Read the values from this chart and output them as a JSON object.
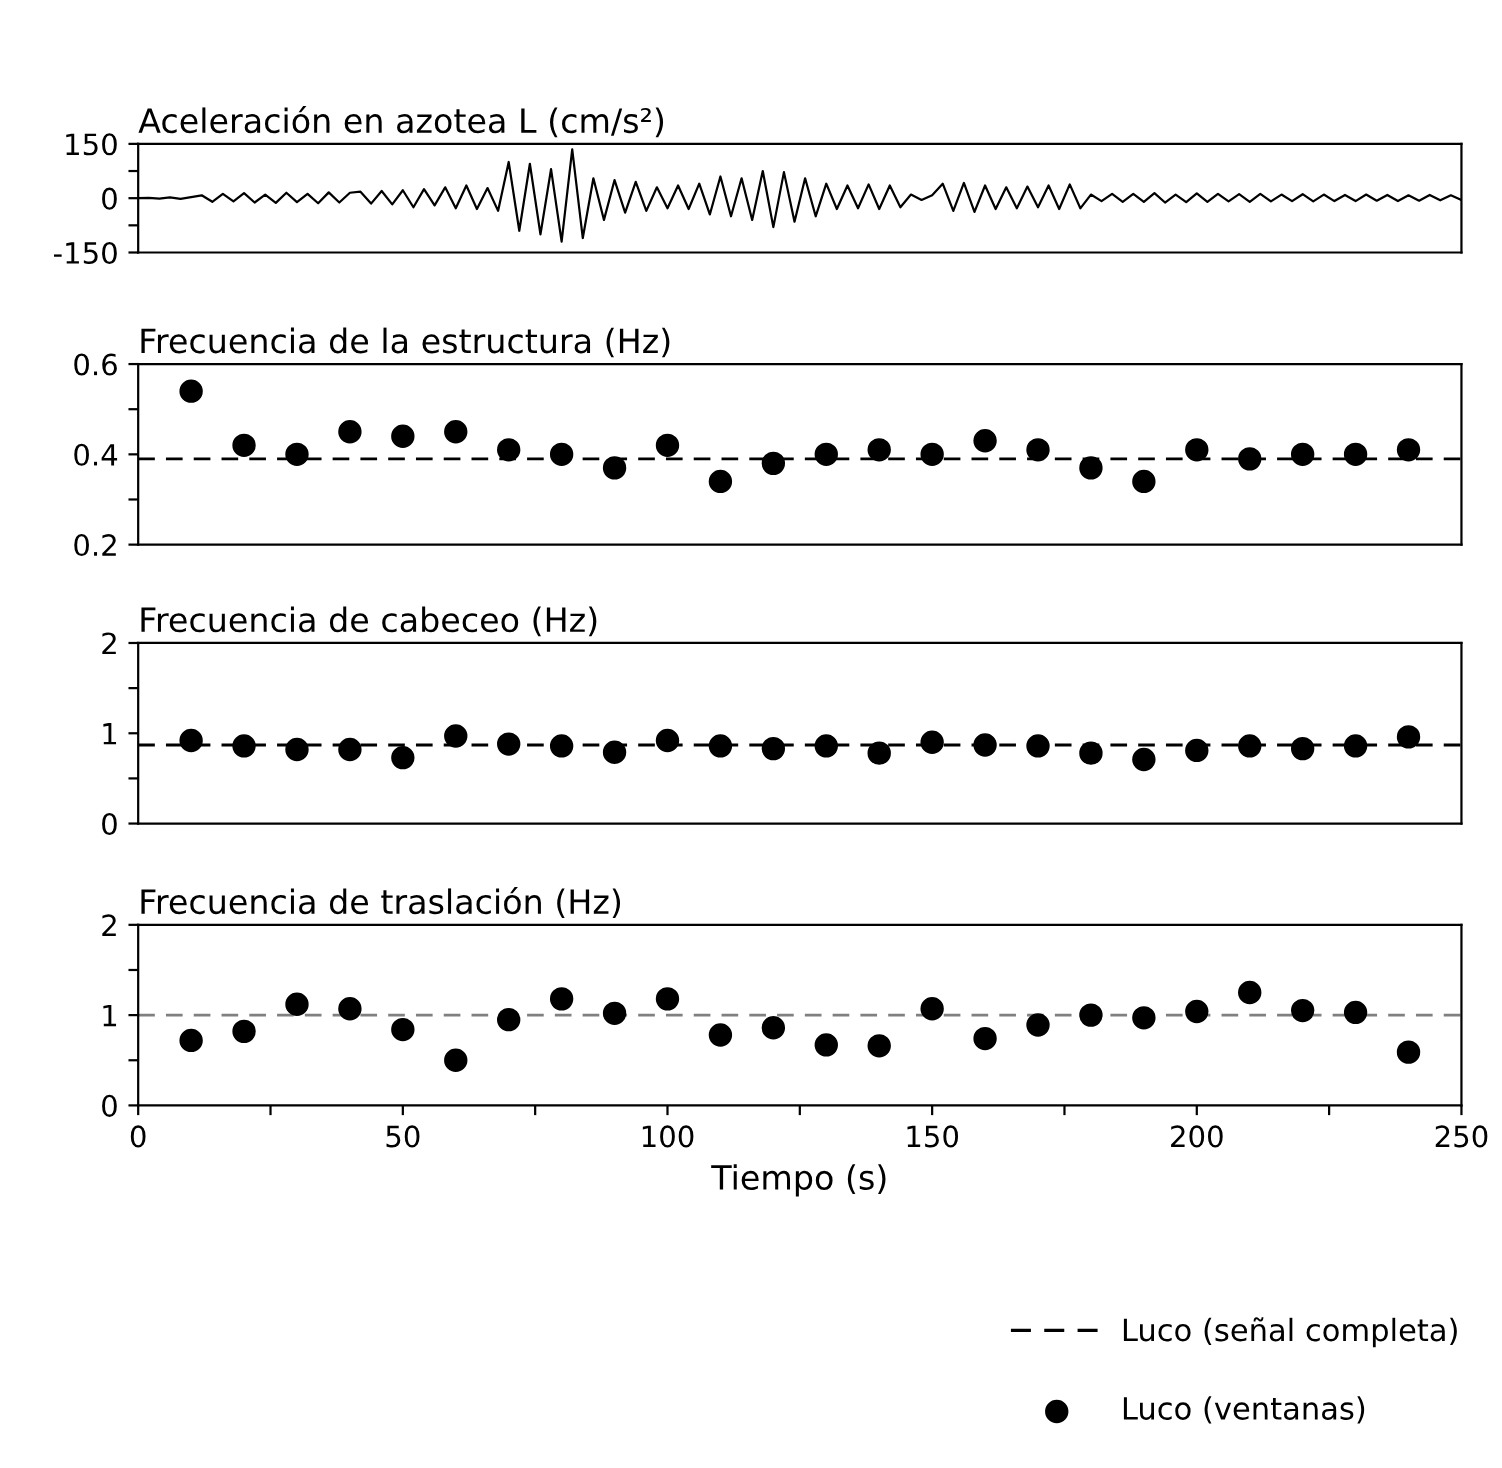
{
  "chart_data": [
    {
      "type": "line",
      "title": "Aceleración en azotea L (cm/s²)",
      "xlim": [
        0,
        250
      ],
      "ylim": [
        -150,
        150
      ],
      "yticks": [
        -150,
        {
          "value": -75,
          "label": null
        },
        0,
        {
          "value": 75,
          "label": null
        },
        150
      ],
      "tick_labels": "y",
      "grid": false,
      "x": [
        0,
        2,
        4,
        6,
        8,
        10,
        12,
        14,
        16,
        18,
        20,
        22,
        24,
        26,
        28,
        30,
        32,
        34,
        36,
        38,
        40,
        42,
        44,
        46,
        48,
        50,
        52,
        54,
        56,
        58,
        60,
        62,
        64,
        66,
        68,
        70,
        72,
        74,
        76,
        78,
        80,
        82,
        84,
        86,
        88,
        90,
        92,
        94,
        96,
        98,
        100,
        102,
        104,
        106,
        108,
        110,
        112,
        114,
        116,
        118,
        120,
        122,
        124,
        126,
        128,
        130,
        132,
        134,
        136,
        138,
        140,
        142,
        144,
        146,
        148,
        150,
        152,
        154,
        156,
        158,
        160,
        162,
        164,
        166,
        168,
        170,
        172,
        174,
        176,
        178,
        180,
        182,
        184,
        186,
        188,
        190,
        192,
        194,
        196,
        198,
        200,
        202,
        204,
        206,
        208,
        210,
        212,
        214,
        216,
        218,
        220,
        222,
        224,
        226,
        228,
        230,
        232,
        234,
        236,
        238,
        240,
        242,
        244,
        246,
        248,
        250
      ],
      "series": [
        {
          "color": "#000000",
          "values": [
            0,
            1,
            -1,
            2,
            -2,
            3,
            8,
            -10,
            12,
            -9,
            14,
            -12,
            10,
            -13,
            15,
            -11,
            12,
            -14,
            16,
            -12,
            15,
            18,
            -15,
            20,
            -17,
            22,
            -25,
            25,
            -20,
            30,
            -28,
            35,
            -30,
            28,
            -35,
            100,
            -90,
            95,
            -100,
            80,
            -120,
            135,
            -110,
            55,
            -60,
            50,
            -40,
            45,
            -35,
            30,
            -28,
            35,
            -30,
            40,
            -45,
            60,
            -50,
            55,
            -60,
            75,
            -80,
            72,
            -65,
            55,
            -50,
            40,
            -30,
            35,
            -28,
            38,
            -30,
            35,
            -25,
            10,
            -5,
            8,
            40,
            -35,
            42,
            -38,
            35,
            -30,
            30,
            -28,
            32,
            -25,
            35,
            -30,
            38,
            -28,
            10,
            -8,
            12,
            -10,
            12,
            -10,
            14,
            -12,
            10,
            -11,
            13,
            -10,
            12,
            -9,
            11,
            -10,
            12,
            -9,
            10,
            -8,
            11,
            -9,
            10,
            -8,
            9,
            -8,
            10,
            -7,
            9,
            -8,
            8,
            -7,
            9,
            -6,
            8,
            -5
          ]
        }
      ]
    },
    {
      "type": "scatter",
      "title": "Frecuencia de la estructura (Hz)",
      "xlim": [
        0,
        250
      ],
      "ylim": [
        0.2,
        0.6
      ],
      "yticks": [
        0.2,
        {
          "value": 0.3,
          "label": null
        },
        0.4,
        {
          "value": 0.5,
          "label": null
        },
        0.6
      ],
      "tick_labels": "y",
      "grid": false,
      "marker": "circle",
      "legend": "bottom",
      "x": [
        10,
        20,
        30,
        40,
        50,
        60,
        70,
        80,
        90,
        100,
        110,
        120,
        130,
        140,
        150,
        160,
        170,
        180,
        190,
        200,
        210,
        220,
        230,
        240
      ],
      "series": [
        {
          "name": "Luco (ventanas)",
          "color": "#000000",
          "values": [
            0.54,
            0.42,
            0.4,
            0.45,
            0.44,
            0.45,
            0.41,
            0.4,
            0.37,
            0.42,
            0.34,
            0.38,
            0.4,
            0.41,
            0.4,
            0.43,
            0.41,
            0.37,
            0.34,
            0.41,
            0.39,
            0.4,
            0.4,
            0.41
          ]
        }
      ],
      "ref_lines": [
        {
          "axis": "y",
          "value": 0.39,
          "label": "Luco (señal completa)",
          "color": "#000000",
          "line_style": "dashed"
        }
      ]
    },
    {
      "type": "scatter",
      "title": "Frecuencia de cabeceo (Hz)",
      "xlim": [
        0,
        250
      ],
      "ylim": [
        0,
        2
      ],
      "yticks": [
        0,
        {
          "value": 0.5,
          "label": null
        },
        1,
        {
          "value": 1.5,
          "label": null
        },
        2
      ],
      "tick_labels": "y",
      "grid": false,
      "marker": "circle",
      "x": [
        10,
        20,
        30,
        40,
        50,
        60,
        70,
        80,
        90,
        100,
        110,
        120,
        130,
        140,
        150,
        160,
        170,
        180,
        190,
        200,
        210,
        220,
        230,
        240
      ],
      "series": [
        {
          "color": "#000000",
          "values": [
            0.92,
            0.86,
            0.82,
            0.82,
            0.73,
            0.97,
            0.88,
            0.86,
            0.79,
            0.92,
            0.86,
            0.83,
            0.86,
            0.78,
            0.9,
            0.87,
            0.86,
            0.78,
            0.71,
            0.81,
            0.86,
            0.83,
            0.86,
            0.96
          ]
        }
      ],
      "ref_lines": [
        {
          "axis": "y",
          "value": 0.87,
          "color": "#000000",
          "line_style": "dashed"
        }
      ]
    },
    {
      "type": "scatter",
      "title": "Frecuencia de traslación (Hz)",
      "xlabel": "Tiempo (s)",
      "xlim": [
        0,
        250
      ],
      "xticks": [
        0,
        {
          "value": 25,
          "label": null
        },
        50,
        {
          "value": 75,
          "label": null
        },
        100,
        {
          "value": 125,
          "label": null
        },
        150,
        {
          "value": 175,
          "label": null
        },
        200,
        {
          "value": 225,
          "label": null
        },
        250
      ],
      "ylim": [
        0,
        2
      ],
      "yticks": [
        0,
        {
          "value": 0.5,
          "label": null
        },
        1,
        {
          "value": 1.5,
          "label": null
        },
        2
      ],
      "grid": false,
      "marker": "circle",
      "x": [
        10,
        20,
        30,
        40,
        50,
        60,
        70,
        80,
        90,
        100,
        110,
        120,
        130,
        140,
        150,
        160,
        170,
        180,
        190,
        200,
        210,
        220,
        230,
        240
      ],
      "series": [
        {
          "color": "#000000",
          "values": [
            0.72,
            0.82,
            1.12,
            1.07,
            0.84,
            0.5,
            0.95,
            1.18,
            1.02,
            1.18,
            0.78,
            0.86,
            0.67,
            0.66,
            1.07,
            0.74,
            0.89,
            1.0,
            0.97,
            1.04,
            1.25,
            1.05,
            1.03,
            0.59
          ]
        }
      ],
      "ref_lines": [
        {
          "axis": "y",
          "value": 1.0,
          "color": "#808080",
          "line_style": "dashed"
        }
      ]
    }
  ]
}
